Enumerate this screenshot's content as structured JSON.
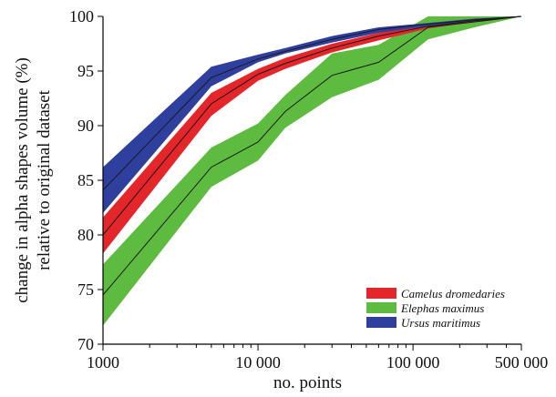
{
  "chart_data": {
    "type": "area",
    "xscale": "log",
    "xlim": [
      1000,
      500000
    ],
    "ylim": [
      70,
      100
    ],
    "xticks": [
      {
        "value": 1000,
        "label": "1000"
      },
      {
        "value": 10000,
        "label": "10 000"
      },
      {
        "value": 100000,
        "label": "100 000"
      },
      {
        "value": 500000,
        "label": "500 000"
      }
    ],
    "yticks": [
      {
        "value": 70,
        "label": "70"
      },
      {
        "value": 75,
        "label": "75"
      },
      {
        "value": 80,
        "label": "80"
      },
      {
        "value": 85,
        "label": "85"
      },
      {
        "value": 90,
        "label": "90"
      },
      {
        "value": 95,
        "label": "95"
      },
      {
        "value": 100,
        "label": "100"
      }
    ],
    "xlabel": "no. points",
    "ylabel_line1": "change in alpha shapes volume (%)",
    "ylabel_line2": "relative to original dataset",
    "legend_position": "bottom-right",
    "grid": false,
    "x": [
      1000,
      5000,
      10000,
      15000,
      30000,
      60000,
      125000,
      250000,
      500000
    ],
    "series": [
      {
        "name": "Elephas maximus",
        "color": "#5dbb3f",
        "mean": [
          74.5,
          86.2,
          88.5,
          91.3,
          94.6,
          95.8,
          99.0,
          99.5,
          100
        ],
        "lower": [
          71.7,
          84.4,
          86.8,
          89.8,
          92.6,
          94.2,
          97.9,
          99.0,
          100
        ],
        "upper": [
          77.3,
          88.0,
          90.2,
          92.8,
          96.6,
          97.4,
          100,
          100,
          100
        ]
      },
      {
        "name": "Camelus dromedaries",
        "color": "#e4262b",
        "mean": [
          80.0,
          92.0,
          94.7,
          95.7,
          97.1,
          98.2,
          99.1,
          99.6,
          100
        ],
        "lower": [
          78.3,
          90.9,
          94.1,
          95.2,
          96.7,
          97.8,
          98.9,
          99.5,
          100
        ],
        "upper": [
          81.6,
          93.0,
          95.2,
          96.2,
          97.5,
          98.5,
          99.3,
          99.7,
          100
        ]
      },
      {
        "name": "Ursus maritimus",
        "color": "#2f3f9e",
        "mean": [
          84.1,
          94.4,
          96.1,
          96.8,
          97.9,
          98.8,
          99.3,
          99.7,
          100
        ],
        "lower": [
          82.0,
          93.6,
          95.8,
          96.6,
          97.6,
          98.5,
          99.1,
          99.6,
          100
        ],
        "upper": [
          86.2,
          95.4,
          96.5,
          97.1,
          98.2,
          99.0,
          99.4,
          99.8,
          100
        ]
      }
    ],
    "legend_order": [
      "Camelus dromedaries",
      "Elephas maximus",
      "Ursus maritimus"
    ]
  }
}
